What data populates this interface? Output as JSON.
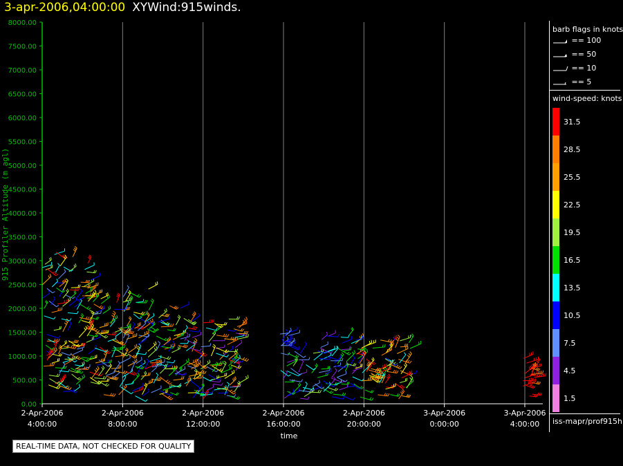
{
  "header": {
    "timestamp": "3-apr-2006,04:00:00",
    "dataset": "XYWind:915winds."
  },
  "colors": {
    "axis": "#00c000",
    "ylabel": "#00c000",
    "timestamp": "#ffff00",
    "grid": "#808080"
  },
  "chart_data": {
    "type": "wind-barb time-height",
    "xlabel": "time",
    "ylabel": "915 Profiler Altitude (m agl)",
    "ylim": [
      0,
      8000
    ],
    "y_ticks": [
      "0.00",
      "500.00",
      "1000.00",
      "1500.00",
      "2000.00",
      "2500.00",
      "3000.00",
      "3500.00",
      "4000.00",
      "4500.00",
      "5000.00",
      "5500.00",
      "6000.00",
      "6500.00",
      "7000.00",
      "7500.00",
      "8000.00"
    ],
    "x_ticks": [
      {
        "date": "2-Apr-2006",
        "time": "4:00:00"
      },
      {
        "date": "2-Apr-2006",
        "time": "8:00:00"
      },
      {
        "date": "2-Apr-2006",
        "time": "12:00:00"
      },
      {
        "date": "2-Apr-2006",
        "time": "16:00:00"
      },
      {
        "date": "2-Apr-2006",
        "time": "20:00:00"
      },
      {
        "date": "3-Apr-2006",
        "time": "0:00:00"
      },
      {
        "date": "3-Apr-2006",
        "time": "4:00:00"
      }
    ],
    "grid": "vertical lines at each time tick",
    "wind_clusters": [
      {
        "t_start": 4.0,
        "t_end": 6.5,
        "alt_min": 250,
        "alt_max": 3300,
        "speed_min": 7,
        "speed_max": 33
      },
      {
        "t_start": 6.5,
        "t_end": 10.5,
        "alt_min": 150,
        "alt_max": 2500,
        "speed_min": 6,
        "speed_max": 31
      },
      {
        "t_start": 10.5,
        "t_end": 13.8,
        "alt_min": 100,
        "alt_max": 2100,
        "speed_min": 3,
        "speed_max": 31
      },
      {
        "t_start": 15.7,
        "t_end": 16.3,
        "alt_min": 1200,
        "alt_max": 1600,
        "speed_min": 8,
        "speed_max": 12
      },
      {
        "t_start": 15.8,
        "t_end": 19.5,
        "alt_min": 100,
        "alt_max": 1450,
        "speed_min": 3,
        "speed_max": 20
      },
      {
        "t_start": 19.5,
        "t_end": 22.3,
        "alt_min": 100,
        "alt_max": 1500,
        "speed_min": 10,
        "speed_max": 33
      },
      {
        "t_start": 27.8,
        "t_end": 28.5,
        "alt_min": 150,
        "alt_max": 1000,
        "speed_min": 29,
        "speed_max": 33
      }
    ]
  },
  "legend": {
    "barb_title": "barb flags in knots",
    "flags": [
      {
        "value": 100,
        "label": "== 100"
      },
      {
        "value": 50,
        "label": "== 50"
      },
      {
        "value": 10,
        "label": "== 10"
      },
      {
        "value": 5,
        "label": "== 5"
      }
    ],
    "speed_title": "wind-speed: knots",
    "colorbar": [
      {
        "label": "31.5",
        "color": "#ff0000"
      },
      {
        "label": "28.5",
        "color": "#ff8000"
      },
      {
        "label": "25.5",
        "color": "#ffa000"
      },
      {
        "label": "22.5",
        "color": "#ffff00"
      },
      {
        "label": "19.5",
        "color": "#a0f040"
      },
      {
        "label": "16.5",
        "color": "#00e000"
      },
      {
        "label": "13.5",
        "color": "#00ffff"
      },
      {
        "label": "10.5",
        "color": "#0000ff"
      },
      {
        "label": "7.5",
        "color": "#6090ff"
      },
      {
        "label": "4.5",
        "color": "#9020e0"
      },
      {
        "label": "1.5",
        "color": "#f080e0"
      }
    ],
    "source_id": "iss-mapr/prof915h"
  },
  "notice": "REAL-TIME DATA, NOT CHECKED FOR QUALITY"
}
